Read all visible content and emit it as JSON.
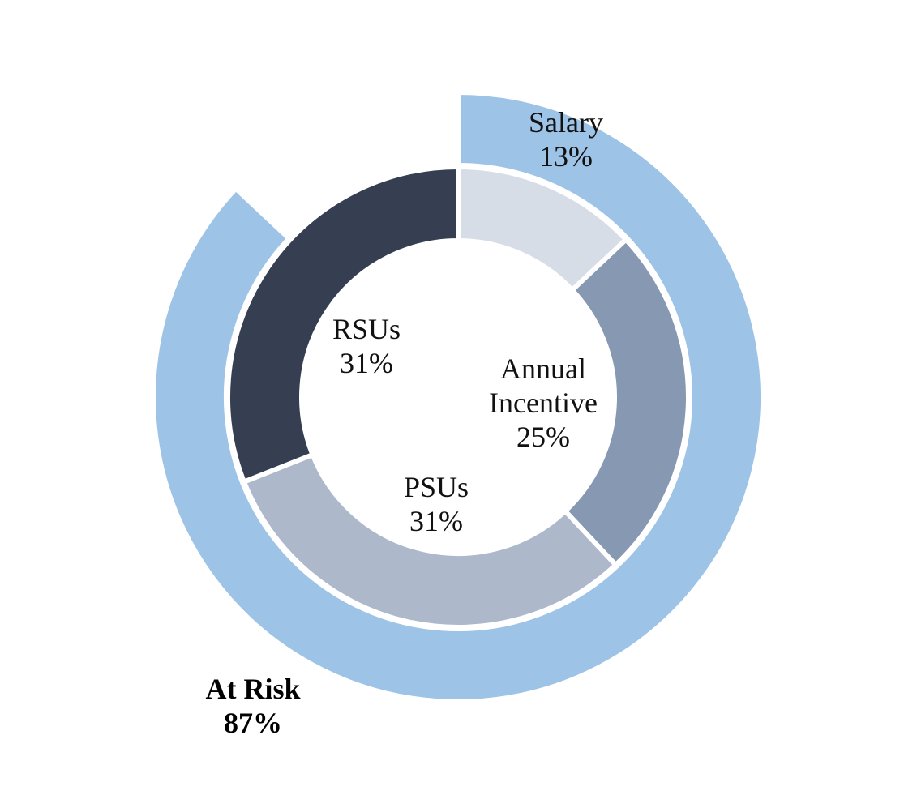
{
  "chart_data": {
    "type": "pie",
    "variant": "nested-donut",
    "inner_ring": {
      "slices": [
        {
          "label": "Salary",
          "value": 13,
          "display": "13%",
          "color": "#d6dde7"
        },
        {
          "label": "Annual",
          "label2": "Incentive",
          "value": 25,
          "display": "25%",
          "color": "#8698b2"
        },
        {
          "label": "PSUs",
          "value": 31,
          "display": "31%",
          "color": "#adb8cb"
        },
        {
          "label": "RSUs",
          "value": 31,
          "display": "31%",
          "color": "#353f51"
        }
      ]
    },
    "outer_ring": {
      "slices": [
        {
          "label": "At Risk",
          "value": 87,
          "display": "87%",
          "color": "#9dc3e6"
        },
        {
          "label": "",
          "value": 13,
          "display": "",
          "color": "#ffffff"
        }
      ]
    },
    "start_angle": "12 o'clock",
    "direction": "clockwise"
  }
}
